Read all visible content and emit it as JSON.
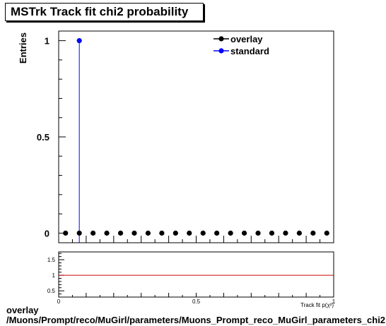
{
  "footer": {
    "line1": "overlay",
    "line2": "/Muons/Prompt/reco/MuGirl/parameters/Muons_Prompt_reco_MuGirl_parameters_chi2"
  },
  "colors": {
    "overlay": "#000000",
    "standard": "#0000ff",
    "ratio_line": "#cc0000"
  },
  "chart_data": [
    {
      "type": "scatter",
      "title": "MSTrk Track fit chi2 probability",
      "xlabel": "",
      "ylabel": "Entries",
      "xlim": [
        0,
        1
      ],
      "ylim": [
        -0.05,
        1.05
      ],
      "yticks": [
        0,
        0.5,
        1
      ],
      "ytick_labels": [
        "0",
        "0.5",
        "1"
      ],
      "legend_position": "top-right",
      "series": [
        {
          "name": "overlay",
          "color": "#000000",
          "x": [
            0.025,
            0.075,
            0.125,
            0.175,
            0.225,
            0.275,
            0.325,
            0.375,
            0.425,
            0.475,
            0.525,
            0.575,
            0.625,
            0.675,
            0.725,
            0.775,
            0.825,
            0.875,
            0.925,
            0.975
          ],
          "values": [
            0,
            0,
            0,
            0,
            0,
            0,
            0,
            0,
            0,
            0,
            0,
            0,
            0,
            0,
            0,
            0,
            0,
            0,
            0,
            0
          ]
        },
        {
          "name": "standard",
          "color": "#0000ff",
          "x": [
            0.075
          ],
          "values": [
            1
          ]
        }
      ]
    },
    {
      "type": "line",
      "xlabel": "Track fit p(χ²)",
      "xlim": [
        0,
        1
      ],
      "ylim": [
        0.3,
        1.75
      ],
      "xticks": [
        0,
        0.5,
        1
      ],
      "xtick_labels": [
        "0",
        "0.5",
        "1"
      ],
      "yticks": [
        0.5,
        1,
        1.5
      ],
      "ytick_labels": [
        "0.5",
        "1",
        "1.5"
      ],
      "reference_line": 1
    }
  ]
}
